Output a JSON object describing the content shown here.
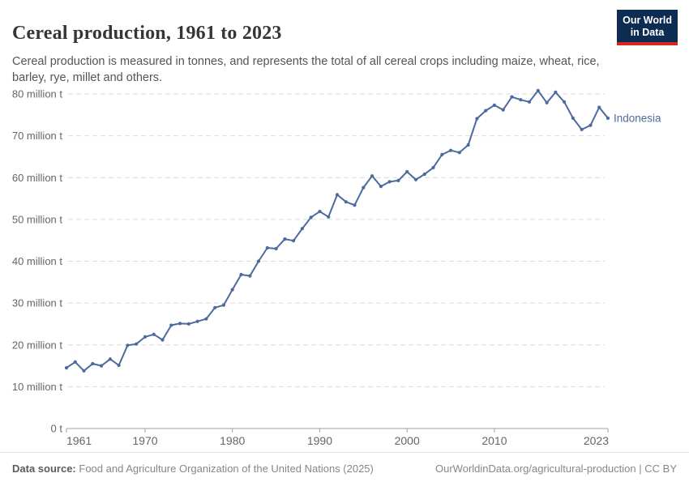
{
  "header": {
    "title": "Cereal production, 1961 to 2023",
    "subtitle": "Cereal production is measured in tonnes, and represents the total of all cereal crops including maize, wheat, rice, barley, rye, millet and others.",
    "logo": {
      "line1": "Our World",
      "line2": "in Data"
    }
  },
  "colors": {
    "line": "#4C6A9C",
    "grid": "#dcdcdc",
    "axis": "#a1a1a1",
    "tick_text": "#666666",
    "logo_bg": "#0d2c52",
    "logo_stripe": "#d7261d"
  },
  "chart_data": {
    "type": "line",
    "title": "Cereal production, 1961 to 2023",
    "unit": "million tonnes",
    "xlim": [
      1961,
      2023
    ],
    "ylim": [
      0,
      80
    ],
    "grid": "horizontal-dashed",
    "legend_position": "end-of-line",
    "x_ticks": [
      1961,
      1970,
      1980,
      1990,
      2000,
      2010,
      2023
    ],
    "y_ticks": [
      {
        "value": 0,
        "label": "0 t"
      },
      {
        "value": 10,
        "label": "10 million t"
      },
      {
        "value": 20,
        "label": "20 million t"
      },
      {
        "value": 30,
        "label": "30 million t"
      },
      {
        "value": 40,
        "label": "40 million t"
      },
      {
        "value": 50,
        "label": "50 million t"
      },
      {
        "value": 60,
        "label": "60 million t"
      },
      {
        "value": 70,
        "label": "70 million t"
      },
      {
        "value": 80,
        "label": "80 million t"
      }
    ],
    "series": [
      {
        "name": "Indonesia",
        "end_label": "Indonesia",
        "color": "#4C6A9C",
        "years": [
          1961,
          1962,
          1963,
          1964,
          1965,
          1966,
          1967,
          1968,
          1969,
          1970,
          1971,
          1972,
          1973,
          1974,
          1975,
          1976,
          1977,
          1978,
          1979,
          1980,
          1981,
          1982,
          1983,
          1984,
          1985,
          1986,
          1987,
          1988,
          1989,
          1990,
          1991,
          1992,
          1993,
          1994,
          1995,
          1996,
          1997,
          1998,
          1999,
          2000,
          2001,
          2002,
          2003,
          2004,
          2005,
          2006,
          2007,
          2008,
          2009,
          2010,
          2011,
          2012,
          2013,
          2014,
          2015,
          2016,
          2017,
          2018,
          2019,
          2020,
          2021,
          2022,
          2023
        ],
        "values": [
          14.5,
          15.9,
          13.8,
          15.5,
          15.0,
          16.6,
          15.1,
          19.9,
          20.2,
          21.9,
          22.5,
          21.2,
          24.7,
          25.1,
          25.0,
          25.6,
          26.2,
          28.9,
          29.5,
          33.2,
          36.8,
          36.5,
          40.0,
          43.2,
          43.0,
          45.3,
          44.9,
          47.8,
          50.5,
          51.9,
          50.6,
          55.9,
          54.2,
          53.4,
          57.6,
          60.4,
          57.9,
          59.0,
          59.3,
          61.4,
          59.5,
          60.8,
          62.4,
          65.5,
          66.5,
          66.0,
          67.8,
          74.1,
          76.0,
          77.3,
          76.2,
          79.3,
          78.6,
          78.1,
          80.8,
          77.9,
          80.4,
          78.1,
          74.2,
          71.5,
          72.5,
          76.8,
          74.2
        ]
      }
    ]
  },
  "footer": {
    "source_label": "Data source:",
    "source_text": "Food and Agriculture Organization of the United Nations (2025)",
    "link": "OurWorldinData.org/agricultural-production",
    "divider": "|",
    "license": "CC BY"
  }
}
